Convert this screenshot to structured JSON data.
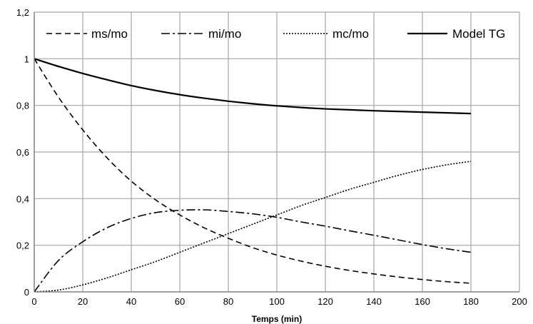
{
  "chart_data": {
    "type": "line",
    "title": "",
    "xlabel": "Temps (min)",
    "ylabel": "",
    "xlim": [
      0,
      200
    ],
    "ylim": [
      0,
      1.2
    ],
    "x_ticks": [
      0,
      20,
      40,
      60,
      80,
      100,
      120,
      140,
      160,
      180,
      200
    ],
    "y_ticks": [
      0,
      0.2,
      0.4,
      0.6,
      0.8,
      1,
      1.2
    ],
    "x_tick_labels": [
      "0",
      "20",
      "40",
      "60",
      "80",
      "100",
      "120",
      "140",
      "160",
      "180",
      "200"
    ],
    "y_tick_labels": [
      "0",
      "0,2",
      "0,4",
      "0,6",
      "0,8",
      "1",
      "1,2"
    ],
    "grid": true,
    "legend_position": "top",
    "x": [
      0,
      10,
      20,
      30,
      40,
      50,
      60,
      70,
      80,
      90,
      100,
      110,
      120,
      130,
      140,
      150,
      160,
      170,
      180
    ],
    "series": [
      {
        "name": "ms/mo",
        "style": "dashed",
        "color": "#000000",
        "values": [
          1.0,
          0.835,
          0.695,
          0.575,
          0.475,
          0.395,
          0.33,
          0.275,
          0.23,
          0.19,
          0.158,
          0.132,
          0.11,
          0.092,
          0.077,
          0.064,
          0.053,
          0.044,
          0.037
        ]
      },
      {
        "name": "mi/mo",
        "style": "dash-dot",
        "color": "#000000",
        "values": [
          0.0,
          0.135,
          0.215,
          0.275,
          0.315,
          0.34,
          0.35,
          0.352,
          0.345,
          0.335,
          0.32,
          0.3,
          0.282,
          0.262,
          0.243,
          0.223,
          0.203,
          0.185,
          0.17
        ]
      },
      {
        "name": "mc/mo",
        "style": "dotted",
        "color": "#000000",
        "values": [
          0.0,
          0.008,
          0.03,
          0.06,
          0.095,
          0.13,
          0.17,
          0.21,
          0.25,
          0.29,
          0.33,
          0.37,
          0.405,
          0.44,
          0.47,
          0.5,
          0.525,
          0.545,
          0.56
        ]
      },
      {
        "name": "Model TG",
        "style": "solid",
        "color": "#000000",
        "values": [
          1.0,
          0.967,
          0.937,
          0.91,
          0.885,
          0.864,
          0.846,
          0.831,
          0.818,
          0.807,
          0.798,
          0.791,
          0.785,
          0.781,
          0.777,
          0.774,
          0.771,
          0.768,
          0.765
        ]
      }
    ]
  }
}
